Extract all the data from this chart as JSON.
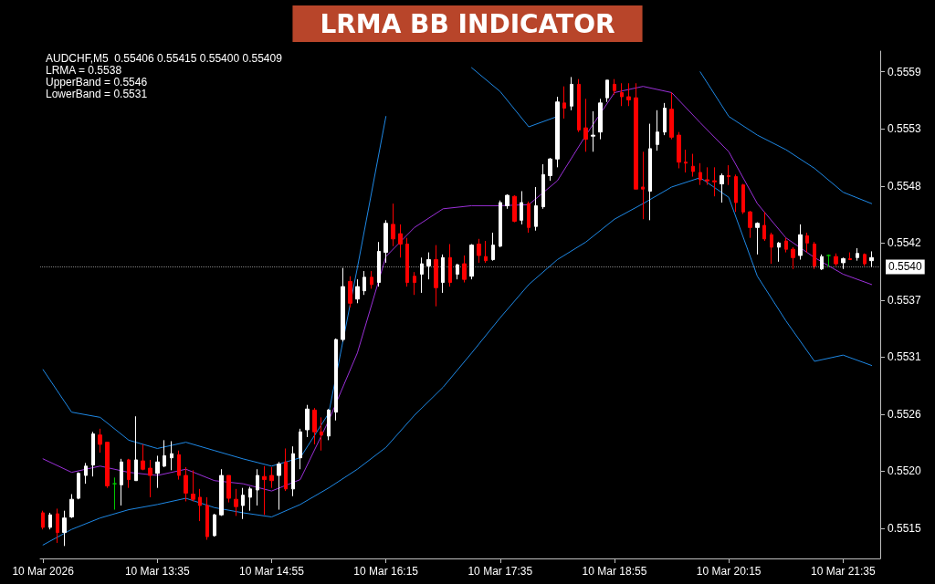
{
  "chart_data": {
    "type": "candlestick",
    "title": "LRMA BB INDICATOR",
    "annotations": [
      "AUDCHF,M5  0.55406 0.55415 0.55400 0.55409",
      "LRMA = 0.5538",
      "UpperBand = 0.5546",
      "LowerBand = 0.5531"
    ],
    "x": [
      "2026-03-10T12:15",
      "2026-03-10T12:20",
      "2026-03-10T12:25",
      "2026-03-10T12:30",
      "2026-03-10T12:35",
      "2026-03-10T12:40",
      "2026-03-10T12:45",
      "2026-03-10T12:50",
      "2026-03-10T12:55",
      "2026-03-10T13:00",
      "2026-03-10T13:05",
      "2026-03-10T13:10",
      "2026-03-10T13:15",
      "2026-03-10T13:20",
      "2026-03-10T13:25",
      "2026-03-10T13:30",
      "2026-03-10T13:35",
      "2026-03-10T13:40",
      "2026-03-10T13:45",
      "2026-03-10T13:50",
      "2026-03-10T13:55",
      "2026-03-10T14:00",
      "2026-03-10T14:05",
      "2026-03-10T14:10",
      "2026-03-10T14:15",
      "2026-03-10T14:20",
      "2026-03-10T14:25",
      "2026-03-10T14:30",
      "2026-03-10T14:35",
      "2026-03-10T14:40",
      "2026-03-10T14:45",
      "2026-03-10T14:50",
      "2026-03-10T14:55",
      "2026-03-10T15:00",
      "2026-03-10T15:05",
      "2026-03-10T15:10",
      "2026-03-10T15:15",
      "2026-03-10T15:20",
      "2026-03-10T15:25",
      "2026-03-10T15:30",
      "2026-03-10T15:35",
      "2026-03-10T15:40",
      "2026-03-10T15:45",
      "2026-03-10T15:50",
      "2026-03-10T15:55",
      "2026-03-10T16:00",
      "2026-03-10T16:05",
      "2026-03-10T16:10",
      "2026-03-10T16:15",
      "2026-03-10T16:20",
      "2026-03-10T16:25",
      "2026-03-10T16:30",
      "2026-03-10T16:35",
      "2026-03-10T16:40",
      "2026-03-10T16:45",
      "2026-03-10T16:50",
      "2026-03-10T16:55",
      "2026-03-10T17:00",
      "2026-03-10T17:05",
      "2026-03-10T17:10",
      "2026-03-10T17:15",
      "2026-03-10T17:20",
      "2026-03-10T17:25",
      "2026-03-10T17:30",
      "2026-03-10T17:35",
      "2026-03-10T17:40",
      "2026-03-10T17:45",
      "2026-03-10T17:50",
      "2026-03-10T17:55",
      "2026-03-10T18:00",
      "2026-03-10T18:05",
      "2026-03-10T18:10",
      "2026-03-10T18:15",
      "2026-03-10T18:20",
      "2026-03-10T18:25",
      "2026-03-10T18:30",
      "2026-03-10T18:35",
      "2026-03-10T18:40",
      "2026-03-10T18:45",
      "2026-03-10T18:50",
      "2026-03-10T18:55",
      "2026-03-10T19:00",
      "2026-03-10T19:05",
      "2026-03-10T19:10",
      "2026-03-10T19:15",
      "2026-03-10T19:20",
      "2026-03-10T19:25",
      "2026-03-10T19:30",
      "2026-03-10T19:35",
      "2026-03-10T19:40",
      "2026-03-10T19:45",
      "2026-03-10T19:50",
      "2026-03-10T19:55",
      "2026-03-10T20:00",
      "2026-03-10T20:05",
      "2026-03-10T20:10",
      "2026-03-10T20:15",
      "2026-03-10T20:20",
      "2026-03-10T20:25",
      "2026-03-10T20:30",
      "2026-03-10T20:35",
      "2026-03-10T20:40",
      "2026-03-10T20:45",
      "2026-03-10T20:50",
      "2026-03-10T20:55",
      "2026-03-10T21:00",
      "2026-03-10T21:05",
      "2026-03-10T21:10",
      "2026-03-10T21:15",
      "2026-03-10T21:20",
      "2026-03-10T21:25",
      "2026-03-10T21:30",
      "2026-03-10T21:35",
      "2026-03-10T21:40",
      "2026-03-10T21:45",
      "2026-03-10T21:50",
      "2026-03-10T21:55"
    ],
    "ohlc": [
      [
        0.55163,
        0.55165,
        0.55147,
        0.55149
      ],
      [
        0.55149,
        0.55163,
        0.55147,
        0.55161
      ],
      [
        0.55162,
        0.55167,
        0.55134,
        0.55144
      ],
      [
        0.55144,
        0.55165,
        0.55131,
        0.55158
      ],
      [
        0.55159,
        0.55181,
        0.55158,
        0.55176
      ],
      [
        0.55177,
        0.55202,
        0.55176,
        0.55201
      ],
      [
        0.55199,
        0.55211,
        0.55191,
        0.55208
      ],
      [
        0.55209,
        0.55241,
        0.55198,
        0.55239
      ],
      [
        0.55238,
        0.55244,
        0.55221,
        0.55229
      ],
      [
        0.55231,
        0.55231,
        0.55187,
        0.55189
      ],
      [
        0.55191,
        0.55197,
        0.55166,
        0.55191
      ],
      [
        0.5519,
        0.55215,
        0.5517,
        0.55212
      ],
      [
        0.55214,
        0.55215,
        0.55187,
        0.55195
      ],
      [
        0.55194,
        0.55256,
        0.55194,
        0.55214
      ],
      [
        0.55213,
        0.55229,
        0.55204,
        0.55205
      ],
      [
        0.55206,
        0.55214,
        0.55178,
        0.55199
      ],
      [
        0.55201,
        0.55218,
        0.55187,
        0.55212
      ],
      [
        0.55208,
        0.55233,
        0.55207,
        0.55218
      ],
      [
        0.55216,
        0.55232,
        0.55204,
        0.5522
      ],
      [
        0.55219,
        0.55223,
        0.55195,
        0.55199
      ],
      [
        0.55199,
        0.55207,
        0.55174,
        0.55182
      ],
      [
        0.55181,
        0.55204,
        0.55174,
        0.55176
      ],
      [
        0.55178,
        0.55186,
        0.55155,
        0.5517
      ],
      [
        0.5517,
        0.55178,
        0.55137,
        0.5514
      ],
      [
        0.55141,
        0.55162,
        0.5514,
        0.55161
      ],
      [
        0.55161,
        0.55205,
        0.5516,
        0.55199
      ],
      [
        0.55199,
        0.55199,
        0.55173,
        0.55177
      ],
      [
        0.55176,
        0.55186,
        0.5516,
        0.55169
      ],
      [
        0.5517,
        0.55187,
        0.55157,
        0.5518
      ],
      [
        0.55178,
        0.55188,
        0.55165,
        0.55186
      ],
      [
        0.55185,
        0.55205,
        0.5517,
        0.55199
      ],
      [
        0.55198,
        0.55208,
        0.55161,
        0.55195
      ],
      [
        0.55199,
        0.55207,
        0.55187,
        0.55194
      ],
      [
        0.55199,
        0.55212,
        0.55166,
        0.5521
      ],
      [
        0.55212,
        0.55225,
        0.55184,
        0.55186
      ],
      [
        0.55186,
        0.55227,
        0.55179,
        0.5522
      ],
      [
        0.55216,
        0.55244,
        0.55205,
        0.55241
      ],
      [
        0.55243,
        0.55267,
        0.55236,
        0.55263
      ],
      [
        0.55262,
        0.55264,
        0.55229,
        0.55241
      ],
      [
        0.55241,
        0.55255,
        0.55223,
        0.55238
      ],
      [
        0.55237,
        0.55263,
        0.55233,
        0.55262
      ],
      [
        0.5526,
        0.55331,
        0.55252,
        0.5533
      ],
      [
        0.5533,
        0.55399,
        0.55328,
        0.55381
      ],
      [
        0.55386,
        0.55391,
        0.55361,
        0.55365
      ],
      [
        0.55369,
        0.55388,
        0.55365,
        0.55381
      ],
      [
        0.55377,
        0.55396,
        0.55373,
        0.5539
      ],
      [
        0.5539,
        0.55396,
        0.55379,
        0.55383
      ],
      [
        0.55385,
        0.55424,
        0.55381,
        0.55415
      ],
      [
        0.55414,
        0.55445,
        0.55404,
        0.55442
      ],
      [
        0.55441,
        0.55461,
        0.5542,
        0.55427
      ],
      [
        0.55432,
        0.55441,
        0.55409,
        0.55422
      ],
      [
        0.55422,
        0.55428,
        0.55381,
        0.55385
      ],
      [
        0.55391,
        0.55395,
        0.55373,
        0.55385
      ],
      [
        0.55393,
        0.55409,
        0.55375,
        0.55403
      ],
      [
        0.55401,
        0.55414,
        0.55388,
        0.55407
      ],
      [
        0.55407,
        0.55421,
        0.55362,
        0.5538
      ],
      [
        0.55385,
        0.55412,
        0.55375,
        0.55409
      ],
      [
        0.55409,
        0.55422,
        0.55381,
        0.55385
      ],
      [
        0.55393,
        0.55403,
        0.55388,
        0.55402
      ],
      [
        0.55403,
        0.55411,
        0.55385,
        0.55388
      ],
      [
        0.55391,
        0.55422,
        0.55388,
        0.55421
      ],
      [
        0.55422,
        0.55427,
        0.55404,
        0.55411
      ],
      [
        0.5541,
        0.55425,
        0.55404,
        0.55406
      ],
      [
        0.55407,
        0.55433,
        0.55406,
        0.55421
      ],
      [
        0.5542,
        0.55464,
        0.55419,
        0.55462
      ],
      [
        0.55459,
        0.5547,
        0.55456,
        0.55469
      ],
      [
        0.55468,
        0.55469,
        0.55443,
        0.55444
      ],
      [
        0.55445,
        0.55473,
        0.55441,
        0.55462
      ],
      [
        0.55461,
        0.55463,
        0.55433,
        0.55438
      ],
      [
        0.55439,
        0.55477,
        0.55435,
        0.55459
      ],
      [
        0.55458,
        0.55499,
        0.55456,
        0.55489
      ],
      [
        0.55488,
        0.55505,
        0.55483,
        0.55504
      ],
      [
        0.55504,
        0.55564,
        0.55496,
        0.55559
      ],
      [
        0.55558,
        0.55574,
        0.55543,
        0.55553
      ],
      [
        0.55555,
        0.55583,
        0.55551,
        0.55576
      ],
      [
        0.55576,
        0.55581,
        0.5553,
        0.55532
      ],
      [
        0.55534,
        0.55562,
        0.55511,
        0.55523
      ],
      [
        0.55526,
        0.5555,
        0.55511,
        0.55527
      ],
      [
        0.5553,
        0.55562,
        0.55523,
        0.55558
      ],
      [
        0.55563,
        0.5558,
        0.55559,
        0.5558
      ],
      [
        0.55576,
        0.55581,
        0.55566,
        0.5557
      ],
      [
        0.55568,
        0.55577,
        0.55555,
        0.55564
      ],
      [
        0.55564,
        0.55577,
        0.55555,
        0.55561
      ],
      [
        0.55563,
        0.55577,
        0.55475,
        0.55475
      ],
      [
        0.55477,
        0.55511,
        0.55446,
        0.55475
      ],
      [
        0.55473,
        0.55538,
        0.55445,
        0.55514
      ],
      [
        0.55518,
        0.55551,
        0.55512,
        0.5553
      ],
      [
        0.5553,
        0.55558,
        0.55527,
        0.55553
      ],
      [
        0.55552,
        0.55568,
        0.55523,
        0.55525
      ],
      [
        0.55527,
        0.5553,
        0.55495,
        0.55501
      ],
      [
        0.55501,
        0.55513,
        0.55491,
        0.555
      ],
      [
        0.55497,
        0.55509,
        0.55487,
        0.55492
      ],
      [
        0.55491,
        0.555,
        0.55479,
        0.55484
      ],
      [
        0.55484,
        0.55496,
        0.55479,
        0.55483
      ],
      [
        0.55483,
        0.55496,
        0.55468,
        0.55482
      ],
      [
        0.5548,
        0.5549,
        0.55462,
        0.55488
      ],
      [
        0.55488,
        0.55498,
        0.55479,
        0.55487
      ],
      [
        0.55487,
        0.55489,
        0.55453,
        0.55462
      ],
      [
        0.55479,
        0.5548,
        0.55451,
        0.55453
      ],
      [
        0.55453,
        0.55454,
        0.55428,
        0.55438
      ],
      [
        0.55438,
        0.55443,
        0.55412,
        0.55442
      ],
      [
        0.5544,
        0.55453,
        0.55425,
        0.55427
      ],
      [
        0.55431,
        0.55433,
        0.55403,
        0.55419
      ],
      [
        0.55419,
        0.55424,
        0.55405,
        0.55423
      ],
      [
        0.55425,
        0.55428,
        0.55414,
        0.55417
      ],
      [
        0.55417,
        0.55419,
        0.55398,
        0.55409
      ],
      [
        0.55411,
        0.55441,
        0.55407,
        0.55431
      ],
      [
        0.5543,
        0.55433,
        0.55414,
        0.55423
      ],
      [
        0.55422,
        0.55424,
        0.55398,
        0.55401
      ],
      [
        0.55398,
        0.55412,
        0.55397,
        0.5541
      ],
      [
        0.55411,
        0.55412,
        0.554,
        0.55411
      ],
      [
        0.5541,
        0.55413,
        0.55401,
        0.55403
      ],
      [
        0.55404,
        0.55409,
        0.55398,
        0.55408
      ],
      [
        0.55408,
        0.55414,
        0.55407,
        0.55407
      ],
      [
        0.55409,
        0.55418,
        0.55406,
        0.55413
      ],
      [
        0.55412,
        0.55413,
        0.55401,
        0.55403
      ],
      [
        0.55406,
        0.55415,
        0.554,
        0.55409
      ]
    ],
    "colors": [
      "#ff0000",
      "#ffffff",
      "#ff0000",
      "#ffffff",
      "#ffffff",
      "#ffffff",
      "#ffffff",
      "#ffffff",
      "#ff0000",
      "#ff0000",
      "#00c800",
      "#ffffff",
      "#ff0000",
      "#ffffff",
      "#ff0000",
      "#ff0000",
      "#ffffff",
      "#ffffff",
      "#ffffff",
      "#ff0000",
      "#ff0000",
      "#ff0000",
      "#ff0000",
      "#ff0000",
      "#ffffff",
      "#ffffff",
      "#ff0000",
      "#ff0000",
      "#ffffff",
      "#ffffff",
      "#ffffff",
      "#ff0000",
      "#ff0000",
      "#ffffff",
      "#ff0000",
      "#ffffff",
      "#ffffff",
      "#ffffff",
      "#ff0000",
      "#ff0000",
      "#ffffff",
      "#ffffff",
      "#ffffff",
      "#ff0000",
      "#ffffff",
      "#ffffff",
      "#ff0000",
      "#ffffff",
      "#ffffff",
      "#ff0000",
      "#ff0000",
      "#ff0000",
      "#ff0000",
      "#ffffff",
      "#ffffff",
      "#ff0000",
      "#ffffff",
      "#ff0000",
      "#ffffff",
      "#ff0000",
      "#ffffff",
      "#ff0000",
      "#ff0000",
      "#ffffff",
      "#ffffff",
      "#ffffff",
      "#ff0000",
      "#ffffff",
      "#ff0000",
      "#ffffff",
      "#ffffff",
      "#ffffff",
      "#ffffff",
      "#ff0000",
      "#ffffff",
      "#ff0000",
      "#ff0000",
      "#ffffff",
      "#ffffff",
      "#ffffff",
      "#ff0000",
      "#ff0000",
      "#ff0000",
      "#ff0000",
      "#ff0000",
      "#ffffff",
      "#ffffff",
      "#ffffff",
      "#ff0000",
      "#ff0000",
      "#ff0000",
      "#ff0000",
      "#ff0000",
      "#ff0000",
      "#ff0000",
      "#ffffff",
      "#ff0000",
      "#ff0000",
      "#ff0000",
      "#ff0000",
      "#ffffff",
      "#ff0000",
      "#ff0000",
      "#ffffff",
      "#ff0000",
      "#ff0000",
      "#ffffff",
      "#ff0000",
      "#ff0000",
      "#ffffff",
      "#00c800",
      "#ff0000",
      "#ffffff",
      "#ff0000",
      "#ffffff",
      "#ff0000",
      "#ffffff"
    ],
    "series": [
      {
        "type": "line",
        "color": "#1e88e5",
        "x": [
          "2026-03-10T12:15",
          "2026-03-10T12:35",
          "2026-03-10T12:55",
          "2026-03-10T13:15",
          "2026-03-10T13:35",
          "2026-03-10T13:55",
          "2026-03-10T14:15",
          "2026-03-10T14:35",
          "2026-03-10T14:55",
          "2026-03-10T15:15",
          "2026-03-10T15:35",
          "2026-03-10T15:55",
          "2026-03-10T16:15",
          "2026-03-10T16:35",
          "2026-03-10T16:55",
          "2026-03-10T17:15",
          "2026-03-10T17:35",
          "2026-03-10T17:55",
          "2026-03-10T18:15",
          "2026-03-10T18:35",
          "2026-03-10T18:55",
          "2026-03-10T19:15",
          "2026-03-10T19:35",
          "2026-03-10T19:55",
          "2026-03-10T20:15",
          "2026-03-10T20:35",
          "2026-03-10T20:55",
          "2026-03-10T21:15",
          "2026-03-10T21:35",
          "2026-03-10T21:55"
        ],
        "values": [
          0.55301,
          0.5526,
          0.55255,
          0.55233,
          0.55225,
          0.55231,
          0.55223,
          0.55215,
          0.55208,
          0.55216,
          0.55259,
          0.55399,
          0.55545,
          null,
          null,
          0.55592,
          0.55569,
          0.55535,
          0.55545,
          null,
          null,
          null,
          null,
          0.55588,
          0.55545,
          0.55527,
          0.55513,
          0.55495,
          0.55472,
          0.55461
        ]
      },
      {
        "type": "line",
        "color": "#9b30d9",
        "x": [
          "2026-03-10T12:15",
          "2026-03-10T12:35",
          "2026-03-10T12:55",
          "2026-03-10T13:15",
          "2026-03-10T13:35",
          "2026-03-10T13:55",
          "2026-03-10T14:15",
          "2026-03-10T14:35",
          "2026-03-10T14:55",
          "2026-03-10T15:15",
          "2026-03-10T15:35",
          "2026-03-10T15:55",
          "2026-03-10T16:15",
          "2026-03-10T16:35",
          "2026-03-10T16:55",
          "2026-03-10T17:15",
          "2026-03-10T17:35",
          "2026-03-10T17:55",
          "2026-03-10T18:15",
          "2026-03-10T18:35",
          "2026-03-10T18:55",
          "2026-03-10T19:15",
          "2026-03-10T19:35",
          "2026-03-10T19:55",
          "2026-03-10T20:15",
          "2026-03-10T20:35",
          "2026-03-10T20:55",
          "2026-03-10T21:15",
          "2026-03-10T21:35",
          "2026-03-10T21:55"
        ],
        "values": [
          0.55215,
          0.55202,
          0.55208,
          0.55202,
          0.55199,
          0.55205,
          0.55194,
          0.55191,
          0.55184,
          0.55195,
          0.55252,
          0.55317,
          0.5541,
          0.55438,
          0.55456,
          0.55459,
          0.55459,
          0.5546,
          0.55483,
          0.55527,
          0.55568,
          0.55574,
          0.55568,
          0.55539,
          0.55511,
          0.55461,
          0.55428,
          0.55409,
          0.55393,
          0.55383
        ]
      },
      {
        "type": "line",
        "color": "#1e88e5",
        "x": [
          "2026-03-10T12:15",
          "2026-03-10T12:35",
          "2026-03-10T12:55",
          "2026-03-10T13:15",
          "2026-03-10T13:35",
          "2026-03-10T13:55",
          "2026-03-10T14:15",
          "2026-03-10T14:35",
          "2026-03-10T14:55",
          "2026-03-10T15:15",
          "2026-03-10T15:35",
          "2026-03-10T15:55",
          "2026-03-10T16:15",
          "2026-03-10T16:35",
          "2026-03-10T16:55",
          "2026-03-10T17:15",
          "2026-03-10T17:35",
          "2026-03-10T17:55",
          "2026-03-10T18:15",
          "2026-03-10T18:35",
          "2026-03-10T18:55",
          "2026-03-10T19:15",
          "2026-03-10T19:35",
          "2026-03-10T19:55",
          "2026-03-10T20:15",
          "2026-03-10T20:35",
          "2026-03-10T20:55",
          "2026-03-10T21:15",
          "2026-03-10T21:35",
          "2026-03-10T21:55"
        ],
        "values": [
          0.55132,
          0.55147,
          0.55158,
          0.55166,
          0.55171,
          0.55177,
          0.55168,
          0.55163,
          0.55159,
          0.55171,
          0.55187,
          0.55205,
          0.55226,
          0.55257,
          0.55284,
          0.55317,
          0.55351,
          0.55383,
          0.55407,
          0.55424,
          0.55446,
          0.55461,
          0.55477,
          0.55486,
          0.55467,
          0.55391,
          0.55348,
          0.55309,
          0.55315,
          0.55305
        ]
      }
    ],
    "xlim": [
      "2026-03-10T12:13",
      "2026-03-10T22:01"
    ],
    "xticks": [
      {
        "value": "2026-03-10T12:15",
        "label": "10 Mar 2026"
      },
      {
        "value": "2026-03-10T13:35",
        "label": "10 Mar 13:35"
      },
      {
        "value": "2026-03-10T14:55",
        "label": "10 Mar 14:55"
      },
      {
        "value": "2026-03-10T16:15",
        "label": "10 Mar 16:15"
      },
      {
        "value": "2026-03-10T17:35",
        "label": "10 Mar 17:35"
      },
      {
        "value": "2026-03-10T18:55",
        "label": "10 Mar 18:55"
      },
      {
        "value": "2026-03-10T20:15",
        "label": "10 Mar 20:15"
      },
      {
        "value": "2026-03-10T21:35",
        "label": "10 Mar 21:35"
      }
    ],
    "ylim": [
      0.55119,
      0.55608
    ],
    "ref_lines": [
      {
        "axis": "y",
        "value": 0.554,
        "label": "0.5540",
        "color": "#808080",
        "line_style": "dotted"
      }
    ],
    "yticks": [
      {
        "value": 0.55148,
        "label": "0.5515"
      },
      {
        "value": 0.55203,
        "label": "0.5520"
      },
      {
        "value": 0.55258,
        "label": "0.5526"
      },
      {
        "value": 0.55313,
        "label": "0.5531"
      },
      {
        "value": 0.55368,
        "label": "0.5537"
      },
      {
        "value": 0.55423,
        "label": "0.5542"
      },
      {
        "value": 0.55478,
        "label": "0.5548"
      },
      {
        "value": 0.55533,
        "label": "0.5553"
      },
      {
        "value": 0.55588,
        "label": "0.5559"
      }
    ]
  }
}
